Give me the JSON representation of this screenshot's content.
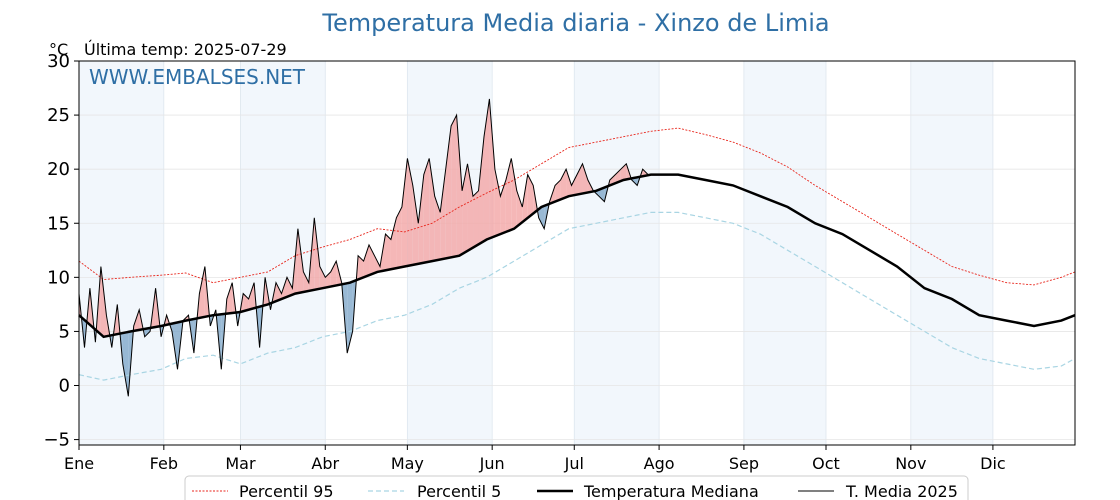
{
  "chart_data": {
    "type": "line",
    "title": "Temperatura Media diaria - Xinzo de Limia",
    "unit_label": "°C",
    "last_temp_label": "Última temp: 2025-07-29",
    "watermark": "WWW.EMBALSES.NET",
    "ylim": [
      -5.5,
      30
    ],
    "yticks": [
      -5,
      0,
      5,
      10,
      15,
      20,
      25,
      30
    ],
    "xlim_day": [
      1,
      365
    ],
    "months": [
      {
        "label": "Ene",
        "start_day": 1
      },
      {
        "label": "Feb",
        "start_day": 32
      },
      {
        "label": "Mar",
        "start_day": 60
      },
      {
        "label": "Abr",
        "start_day": 91
      },
      {
        "label": "May",
        "start_day": 121
      },
      {
        "label": "Jun",
        "start_day": 152
      },
      {
        "label": "Jul",
        "start_day": 182
      },
      {
        "label": "Ago",
        "start_day": 213
      },
      {
        "label": "Sep",
        "start_day": 244
      },
      {
        "label": "Oct",
        "start_day": 274
      },
      {
        "label": "Nov",
        "start_day": 305
      },
      {
        "label": "Dic",
        "start_day": 335
      }
    ],
    "series": [
      {
        "name": "Percentil 95",
        "style": "dotted",
        "color": "#e8261c",
        "days": [
          1,
          10,
          20,
          31,
          40,
          50,
          60,
          70,
          80,
          90,
          100,
          110,
          120,
          130,
          140,
          150,
          160,
          170,
          180,
          190,
          200,
          210,
          220,
          230,
          240,
          250,
          260,
          270,
          280,
          290,
          300,
          310,
          320,
          330,
          340,
          350,
          360,
          365
        ],
        "values": [
          11.5,
          9.8,
          10.0,
          10.2,
          10.4,
          9.5,
          10.0,
          10.5,
          12.0,
          12.8,
          13.5,
          14.5,
          14.2,
          15.0,
          16.5,
          17.8,
          19.0,
          20.5,
          22.0,
          22.5,
          23.0,
          23.5,
          23.8,
          23.2,
          22.5,
          21.5,
          20.2,
          18.5,
          17.0,
          15.5,
          14.0,
          12.5,
          11.0,
          10.2,
          9.5,
          9.3,
          10.0,
          10.5
        ]
      },
      {
        "name": "Percentil 5",
        "style": "dashed",
        "color": "#a9d5e3",
        "days": [
          1,
          10,
          20,
          31,
          40,
          50,
          60,
          70,
          80,
          90,
          100,
          110,
          120,
          130,
          140,
          150,
          160,
          170,
          180,
          190,
          200,
          210,
          220,
          230,
          240,
          250,
          260,
          270,
          280,
          290,
          300,
          310,
          320,
          330,
          340,
          350,
          360,
          365
        ],
        "values": [
          1.0,
          0.5,
          1.0,
          1.5,
          2.5,
          2.8,
          2.0,
          3.0,
          3.5,
          4.5,
          5.0,
          6.0,
          6.5,
          7.5,
          9.0,
          10.0,
          11.5,
          13.0,
          14.5,
          15.0,
          15.5,
          16.0,
          16.0,
          15.5,
          15.0,
          14.0,
          12.5,
          11.0,
          9.5,
          8.0,
          6.5,
          5.0,
          3.5,
          2.5,
          2.0,
          1.5,
          1.8,
          2.5
        ]
      },
      {
        "name": "Temperatura Mediana",
        "style": "solid-thick",
        "color": "#000000",
        "days": [
          1,
          10,
          20,
          31,
          40,
          50,
          60,
          70,
          80,
          90,
          100,
          110,
          120,
          130,
          140,
          150,
          160,
          170,
          180,
          190,
          200,
          210,
          220,
          230,
          240,
          250,
          260,
          270,
          280,
          290,
          300,
          310,
          320,
          330,
          340,
          350,
          360,
          365
        ],
        "values": [
          6.5,
          4.5,
          5.0,
          5.5,
          6.0,
          6.5,
          6.8,
          7.5,
          8.5,
          9.0,
          9.5,
          10.5,
          11.0,
          11.5,
          12.0,
          13.5,
          14.5,
          16.5,
          17.5,
          18.0,
          19.0,
          19.5,
          19.5,
          19.0,
          18.5,
          17.5,
          16.5,
          15.0,
          14.0,
          12.5,
          11.0,
          9.0,
          8.0,
          6.5,
          6.0,
          5.5,
          6.0,
          6.5
        ]
      },
      {
        "name": "T. Media 2025",
        "style": "solid-thin",
        "color": "#000000",
        "days": [
          1,
          3,
          5,
          7,
          9,
          11,
          13,
          15,
          17,
          19,
          21,
          23,
          25,
          27,
          29,
          31,
          33,
          35,
          37,
          39,
          41,
          43,
          45,
          47,
          49,
          51,
          53,
          55,
          57,
          59,
          61,
          63,
          65,
          67,
          69,
          71,
          73,
          75,
          77,
          79,
          81,
          83,
          85,
          87,
          89,
          91,
          93,
          95,
          97,
          99,
          101,
          103,
          105,
          107,
          109,
          111,
          113,
          115,
          117,
          119,
          121,
          123,
          125,
          127,
          129,
          131,
          133,
          135,
          137,
          139,
          141,
          143,
          145,
          147,
          149,
          151,
          153,
          155,
          157,
          159,
          161,
          163,
          165,
          167,
          169,
          171,
          173,
          175,
          177,
          179,
          181,
          183,
          185,
          187,
          189,
          191,
          193,
          195,
          197,
          199,
          201,
          203,
          205,
          207,
          209,
          210
        ],
        "values": [
          8.5,
          3.5,
          9.0,
          4.0,
          11.0,
          6.5,
          3.5,
          7.5,
          2.0,
          -1.0,
          5.5,
          7.0,
          4.5,
          5.0,
          9.0,
          4.5,
          6.5,
          5.0,
          1.5,
          6.0,
          6.5,
          3.0,
          8.5,
          11.0,
          5.5,
          7.0,
          1.5,
          8.0,
          9.5,
          5.5,
          8.5,
          8.0,
          9.5,
          3.5,
          10.0,
          7.0,
          9.5,
          8.5,
          10.0,
          9.0,
          14.5,
          10.5,
          9.5,
          15.5,
          11.0,
          10.0,
          10.5,
          11.5,
          9.5,
          3.0,
          5.0,
          12.0,
          11.5,
          13.0,
          12.0,
          11.0,
          14.0,
          13.5,
          15.5,
          16.5,
          21.0,
          18.5,
          15.0,
          19.5,
          21.0,
          17.5,
          16.0,
          20.0,
          24.0,
          25.0,
          18.0,
          20.5,
          17.5,
          18.0,
          23.0,
          26.5,
          20.0,
          17.5,
          19.0,
          21.0,
          18.0,
          16.5,
          19.5,
          18.5,
          15.5,
          14.5,
          17.0,
          18.5,
          19.0,
          20.0,
          18.5,
          19.5,
          20.5,
          19.0,
          18.0,
          17.5,
          17.0,
          19.0,
          19.5,
          20.0,
          20.5,
          19.0,
          18.5,
          20.0,
          19.5,
          19.5
        ]
      }
    ],
    "legend_placement": "bottom-center",
    "grid": true
  }
}
